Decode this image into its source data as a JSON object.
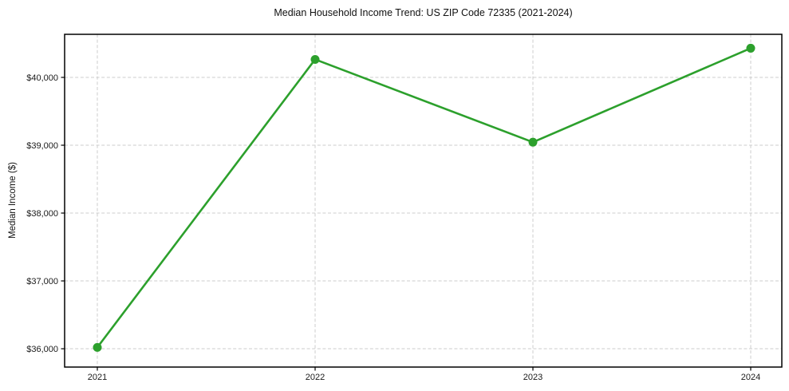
{
  "chart_data": {
    "type": "line",
    "title": "Median Household Income Trend: US ZIP Code 72335 (2021-2024)",
    "xlabel": "",
    "ylabel": "Median Income ($)",
    "categories": [
      "2021",
      "2022",
      "2023",
      "2024"
    ],
    "values": [
      36020,
      40265,
      39045,
      40430
    ],
    "series": [
      {
        "name": "Median Household Income",
        "values": [
          36020,
          40265,
          39045,
          40430
        ]
      }
    ],
    "y_ticks": [
      {
        "value": 36000,
        "label": "$36,000"
      },
      {
        "value": 37000,
        "label": "$37,000"
      },
      {
        "value": 38000,
        "label": "$38,000"
      },
      {
        "value": 39000,
        "label": "$39,000"
      },
      {
        "value": 40000,
        "label": "$40,000"
      }
    ],
    "ylim": [
      35730,
      40635
    ],
    "grid": true,
    "grid_style": "dashed",
    "legend_position": "none",
    "line_color": "#2ca02c",
    "marker": "circle",
    "marker_color": "#2ca02c",
    "grid_color": "#cccccc",
    "axis_color": "#000000",
    "text_color": "#1a1a1a",
    "background_color": "#ffffff"
  }
}
